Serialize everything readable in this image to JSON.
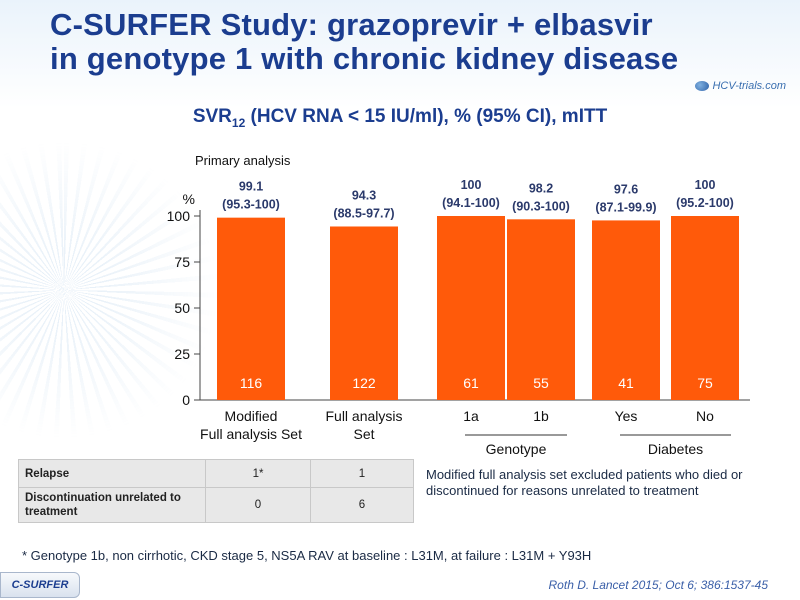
{
  "title_line1": "C-SURFER Study: grazoprevir + elbasvir",
  "title_line2": "in genotype 1 with chronic kidney disease",
  "logo_text": "HCV-trials.com",
  "subtitle_main": "SVR",
  "subtitle_sub": "12",
  "subtitle_rest": " (HCV RNA < 15 IU/ml), % (95% CI), mITT",
  "primary_label": "Primary analysis",
  "chart_data": {
    "type": "bar",
    "ylabel": "%",
    "ylim": [
      0,
      100
    ],
    "yticks": [
      0,
      25,
      50,
      75,
      100
    ],
    "bar_color": "#ff5a0a",
    "categories": [
      "Modified Full analysis Set",
      "Full analysis Set",
      "1a",
      "1b",
      "Yes",
      "No"
    ],
    "category_lines": [
      [
        "Modified",
        "Full analysis Set"
      ],
      [
        "Full analysis",
        "Set"
      ],
      [
        "1a"
      ],
      [
        "1b"
      ],
      [
        "Yes"
      ],
      [
        "No"
      ]
    ],
    "values": [
      99.1,
      94.3,
      100,
      98.2,
      97.6,
      100
    ],
    "ci": [
      "(95.3-100)",
      "(88.5-97.7)",
      "(94.1-100)",
      "(90.3-100)",
      "(87.1-99.9)",
      "(95.2-100)"
    ],
    "value_labels": [
      "99.1",
      "94.3",
      "100",
      "98.2",
      "97.6",
      "100"
    ],
    "n": [
      "116",
      "122",
      "61",
      "55",
      "41",
      "75"
    ],
    "groups": [
      {
        "label": "Genotype",
        "from": 2,
        "to": 3
      },
      {
        "label": "Diabetes",
        "from": 4,
        "to": 5
      }
    ]
  },
  "table": {
    "rows": [
      {
        "label": "Relapse",
        "v1": "1*",
        "v2": "1"
      },
      {
        "label": "Discontinuation unrelated to treatment",
        "v1": "0",
        "v2": "6"
      }
    ]
  },
  "note": "Modified full analysis set excluded patients who died or discontinued for reasons unrelated to treatment",
  "footnote": "* Genotype 1b, non cirrhotic, CKD stage 5, NS5A RAV at baseline : L31M, at failure : L31M + Y93H",
  "badge": "C-SURFER",
  "citation": "Roth D. Lancet 2015; Oct 6; 386:1537-45"
}
